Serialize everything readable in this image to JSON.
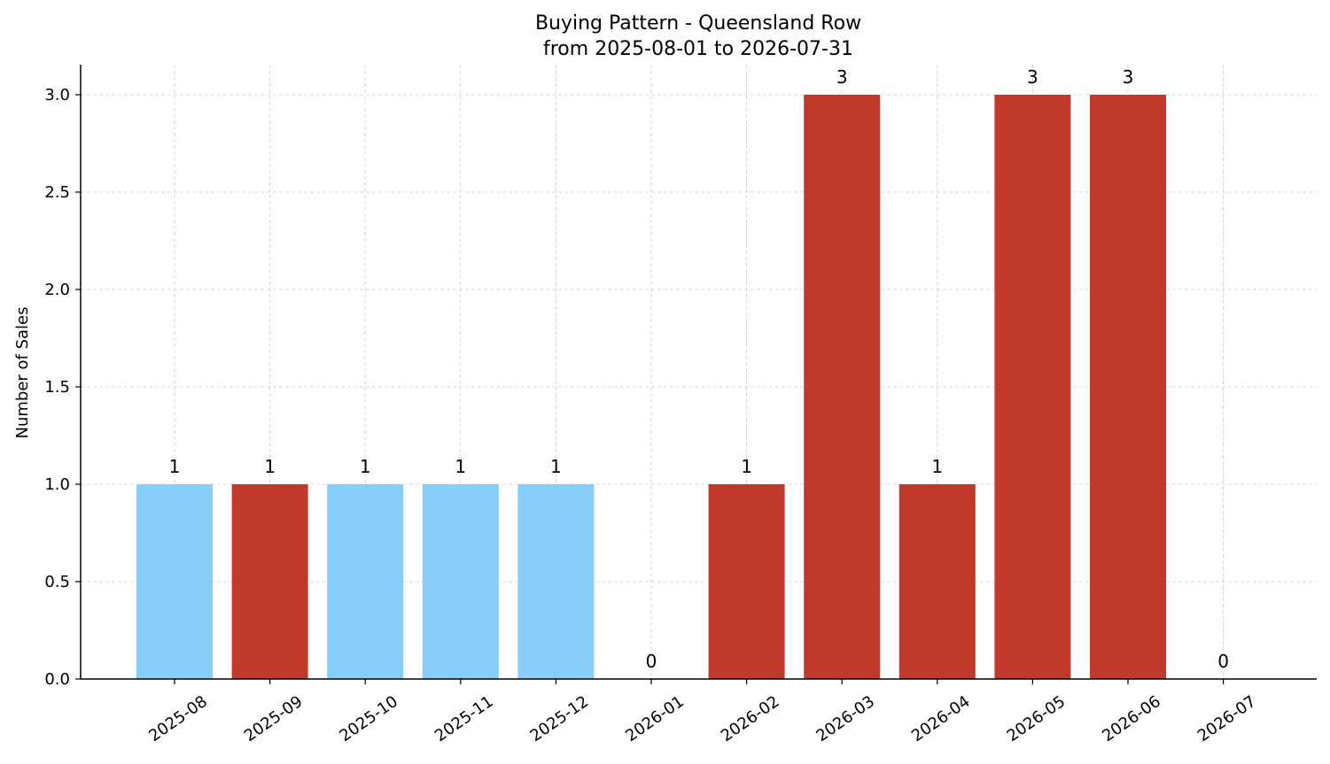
{
  "chart_data": {
    "type": "bar",
    "title": "Buying Pattern - Queensland Row",
    "subtitle": "from 2025-08-01 to 2026-07-31",
    "xlabel": "",
    "ylabel": "Number of Sales",
    "ylim": [
      0,
      3.15
    ],
    "yticks": [
      0.0,
      0.5,
      1.0,
      1.5,
      2.0,
      2.5,
      3.0
    ],
    "ytick_labels": [
      "0.0",
      "0.5",
      "1.0",
      "1.5",
      "2.0",
      "2.5",
      "3.0"
    ],
    "categories": [
      "2025-08",
      "2025-09",
      "2025-10",
      "2025-11",
      "2025-12",
      "2026-01",
      "2026-02",
      "2026-03",
      "2026-04",
      "2026-05",
      "2026-06",
      "2026-07"
    ],
    "values": [
      1,
      1,
      1,
      1,
      1,
      0,
      1,
      3,
      1,
      3,
      3,
      0
    ],
    "data_labels": [
      "1",
      "1",
      "1",
      "1",
      "1",
      "0",
      "1",
      "3",
      "1",
      "3",
      "3",
      "0"
    ],
    "bar_colors": [
      "#87CEFA",
      "#C0392B",
      "#87CEFA",
      "#87CEFA",
      "#87CEFA",
      "#C0392B",
      "#C0392B",
      "#C0392B",
      "#C0392B",
      "#C0392B",
      "#C0392B",
      "#C0392B"
    ],
    "grid": true,
    "legend": "none"
  }
}
